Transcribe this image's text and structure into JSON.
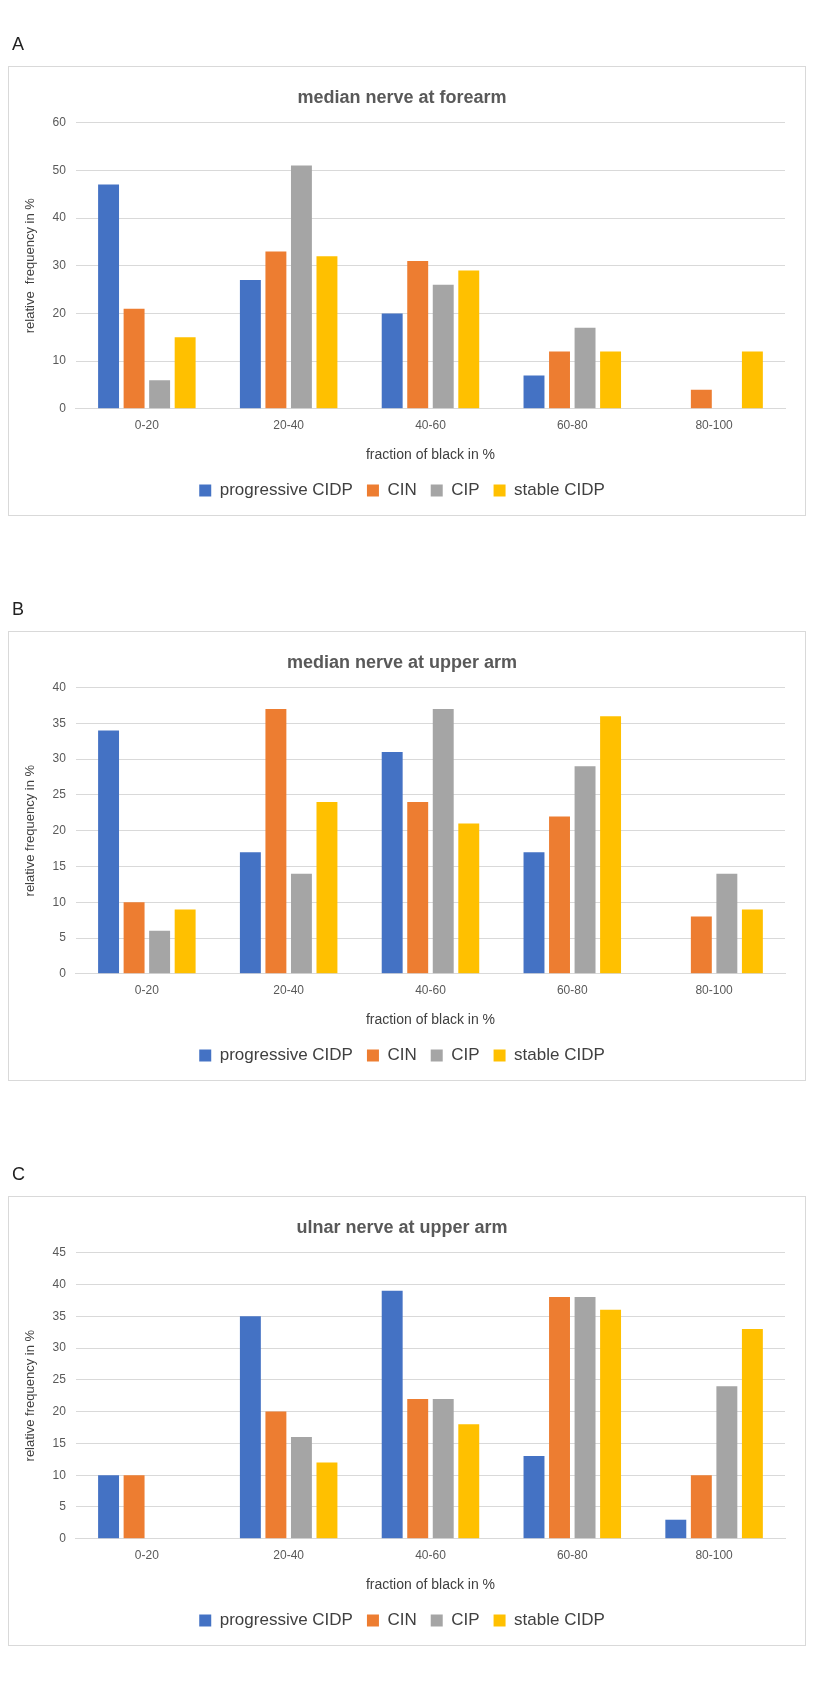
{
  "chart_data": [
    {
      "type": "bar",
      "annotations": [
        "A"
      ],
      "title": "median nerve at forearm",
      "xlabel": "fraction of black in %",
      "ylabel": "relative  frequency in %",
      "categories": [
        "0-20",
        "20-40",
        "40-60",
        "60-80",
        "80-100"
      ],
      "ylim": [
        0,
        60
      ],
      "yticks": [
        0,
        10,
        20,
        30,
        40,
        50,
        60
      ],
      "grid": "y",
      "legend": "bottom",
      "series": [
        {
          "name": "progressive CIDP",
          "color": "#4472c4",
          "values": [
            47,
            27,
            20,
            7,
            0
          ]
        },
        {
          "name": "CIN",
          "color": "#ed7d31",
          "values": [
            21,
            33,
            31,
            12,
            4
          ]
        },
        {
          "name": "CIP",
          "color": "#a5a5a5",
          "values": [
            6,
            51,
            26,
            17,
            0
          ]
        },
        {
          "name": "stable CIDP",
          "color": "#ffc000",
          "values": [
            15,
            32,
            29,
            12,
            12
          ]
        }
      ]
    },
    {
      "type": "bar",
      "annotations": [
        "B"
      ],
      "title": "median nerve at upper arm",
      "xlabel": "fraction of black in %",
      "ylabel": "relative frequency in %",
      "categories": [
        "0-20",
        "20-40",
        "40-60",
        "60-80",
        "80-100"
      ],
      "ylim": [
        0,
        40
      ],
      "yticks": [
        0,
        5,
        10,
        15,
        20,
        25,
        30,
        35,
        40
      ],
      "grid": "y",
      "legend": "bottom",
      "series": [
        {
          "name": "progressive CIDP",
          "color": "#4472c4",
          "values": [
            34,
            17,
            31,
            17,
            0
          ]
        },
        {
          "name": "CIN",
          "color": "#ed7d31",
          "values": [
            10,
            37,
            24,
            22,
            8
          ]
        },
        {
          "name": "CIP",
          "color": "#a5a5a5",
          "values": [
            6,
            14,
            37,
            29,
            14
          ]
        },
        {
          "name": "stable CIDP",
          "color": "#ffc000",
          "values": [
            9,
            24,
            21,
            36,
            9
          ]
        }
      ]
    },
    {
      "type": "bar",
      "annotations": [
        "C"
      ],
      "title": "ulnar nerve at upper arm",
      "xlabel": "fraction of black in %",
      "ylabel": "relative frequency in %",
      "categories": [
        "0-20",
        "20-40",
        "40-60",
        "60-80",
        "80-100"
      ],
      "ylim": [
        0,
        45
      ],
      "yticks": [
        0,
        5,
        10,
        15,
        20,
        25,
        30,
        35,
        40,
        45
      ],
      "grid": "y",
      "legend": "bottom",
      "series": [
        {
          "name": "progressive CIDP",
          "color": "#4472c4",
          "values": [
            10,
            35,
            39,
            13,
            3
          ]
        },
        {
          "name": "CIN",
          "color": "#ed7d31",
          "values": [
            10,
            20,
            22,
            38,
            10
          ]
        },
        {
          "name": "CIP",
          "color": "#a5a5a5",
          "values": [
            0,
            16,
            22,
            38,
            24
          ]
        },
        {
          "name": "stable CIDP",
          "color": "#ffc000",
          "values": [
            0,
            12,
            18,
            36,
            33
          ]
        }
      ]
    }
  ]
}
